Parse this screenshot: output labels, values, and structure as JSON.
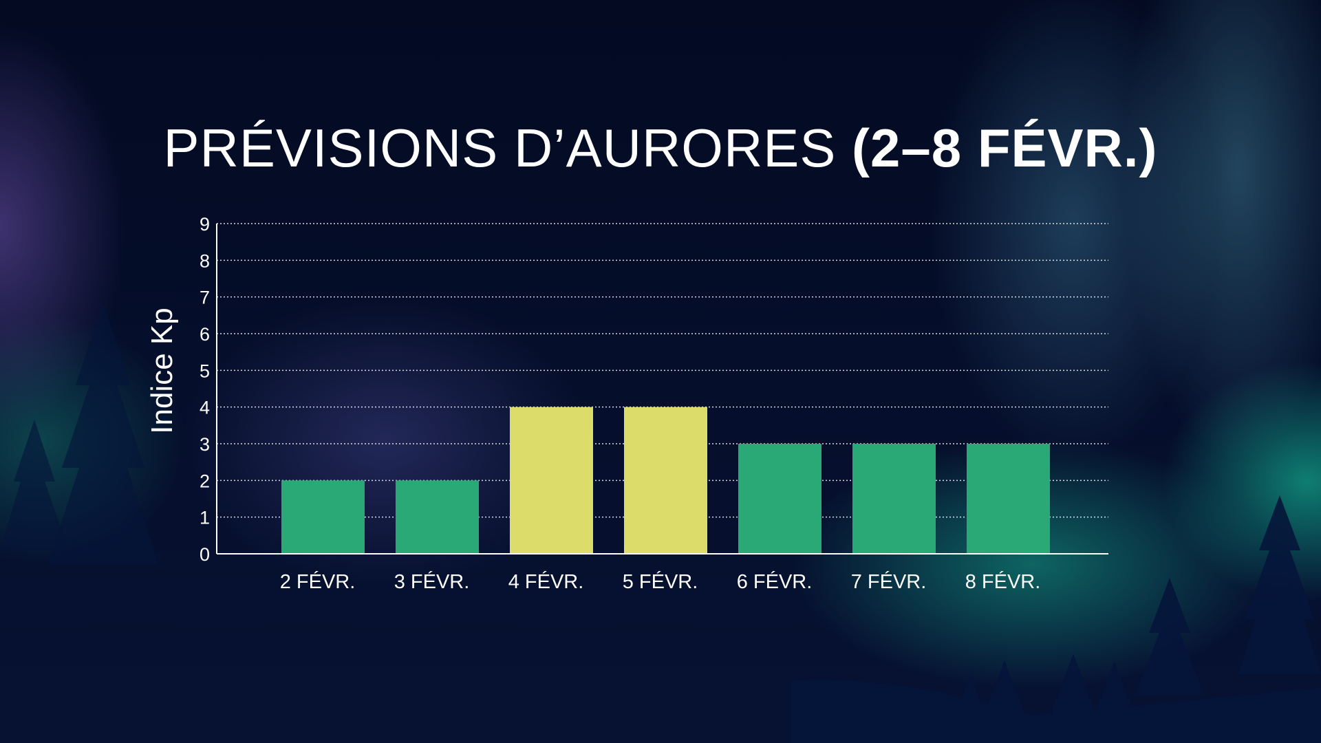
{
  "title": {
    "light": "PRÉVISIONS D’AURORES",
    "bold": "(2–8 FÉVR.)"
  },
  "colors": {
    "background": "#040b24",
    "low": "#2aa876",
    "high": "#dcdc6a",
    "grid": "#ffffff"
  },
  "chart_data": {
    "type": "bar",
    "title": "PRÉVISIONS D’AURORES (2–8 FÉVR.)",
    "ylabel": "Indice Kp",
    "xlabel": "",
    "categories": [
      "2 FÉVR.",
      "3 FÉVR.",
      "4 FÉVR.",
      "5 FÉVR.",
      "6 FÉVR.",
      "7 FÉVR.",
      "8 FÉVR."
    ],
    "values": [
      2,
      2,
      4,
      4,
      3,
      3,
      3
    ],
    "bar_colors": [
      "#2aa876",
      "#2aa876",
      "#dcdc6a",
      "#dcdc6a",
      "#2aa876",
      "#2aa876",
      "#2aa876"
    ],
    "ylim": [
      0,
      9
    ],
    "yticks": [
      "0",
      "1",
      "2",
      "3",
      "4",
      "5",
      "6",
      "7",
      "8",
      "9"
    ],
    "grid": "horizontal dotted"
  }
}
